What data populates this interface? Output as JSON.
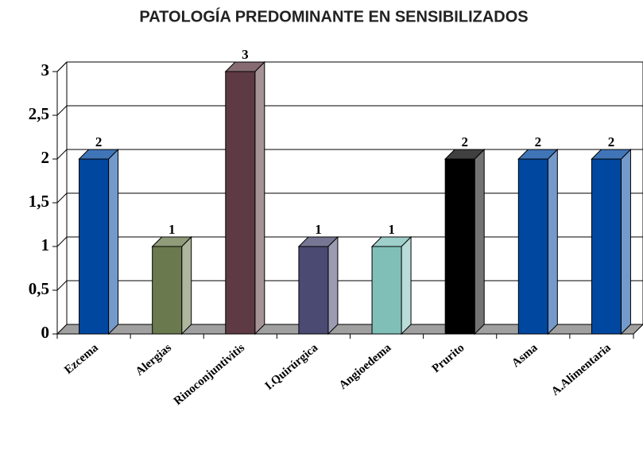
{
  "chart_data": {
    "type": "bar3d",
    "title": "PATOLOGÍA PREDOMINANTE EN SENSIBILIZADOS",
    "categories": [
      "Ezcema",
      "Alergias",
      "Rinoconjuntivitis",
      "I.Quirúrgica",
      "Angioedema",
      "Prurito",
      "Asma",
      "A.Alimentaria"
    ],
    "values": [
      2,
      1,
      3,
      1,
      1,
      2,
      2,
      2
    ],
    "colors": [
      "#0047a0",
      "#6b7a4e",
      "#5e3a44",
      "#4a4a72",
      "#7fbfb8",
      "#000000",
      "#0047a0",
      "#0047a0"
    ],
    "ylim": [
      0,
      3
    ],
    "yticks": [
      0,
      {
        "value": 0.5,
        "label": "0,5"
      },
      1,
      {
        "value": 1.5,
        "label": "1,5"
      },
      2,
      {
        "value": 2.5,
        "label": "2,5"
      },
      3
    ],
    "grid": true
  }
}
